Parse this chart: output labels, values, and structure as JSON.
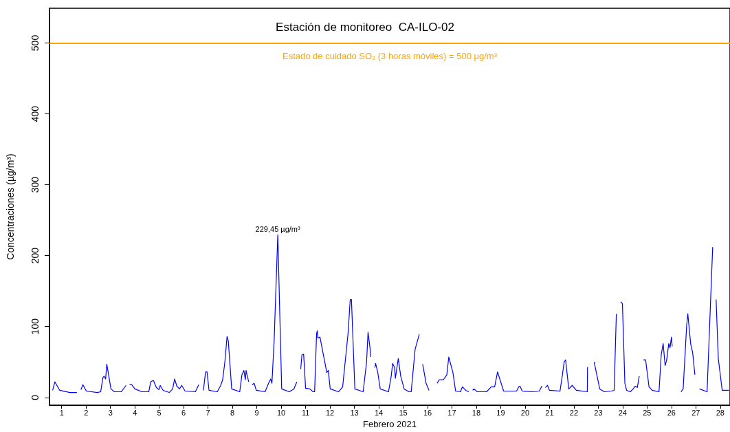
{
  "chart_data": {
    "type": "line",
    "title": "Estación de monitoreo  CA-ILO-02",
    "xlabel": "Febrero 2021",
    "ylabel": "Concentraciones (µg/m³)",
    "xlim": [
      0.5,
      28.4
    ],
    "xticks": [
      1,
      2,
      3,
      4,
      5,
      6,
      7,
      8,
      9,
      10,
      11,
      12,
      13,
      14,
      15,
      16,
      17,
      18,
      19,
      20,
      21,
      22,
      23,
      24,
      25,
      26,
      27,
      28
    ],
    "ylim": [
      -11,
      549
    ],
    "yticks": [
      0,
      100,
      200,
      300,
      400,
      500
    ],
    "grid": false,
    "marker": "none",
    "line_style": "solid",
    "ref_lines": [
      {
        "axis": "y",
        "value": 500,
        "label": "Estado de cuidado SO₂ (3 horas móviles) = 500 µg/m³",
        "color": "#ffa500"
      }
    ],
    "annotations": [
      {
        "text": "229,45 µg/m³",
        "x": 9.86,
        "y": 229.45
      }
    ],
    "series": [
      {
        "color": "#0000ff",
        "x": [
          0.63,
          0.72,
          0.92,
          1.34,
          1.62,
          1.7,
          1.79,
          1.87,
          2.01,
          2.46,
          2.6,
          2.69,
          2.74,
          2.8,
          2.85,
          3.02,
          3.16,
          3.44,
          3.64,
          3.71,
          3.78,
          3.87,
          4.0,
          4.29,
          4.57,
          4.65,
          4.76,
          4.88,
          4.99,
          5.04,
          5.16,
          5.41,
          5.55,
          5.63,
          5.72,
          5.83,
          5.92,
          6.06,
          6.48,
          6.62,
          6.7,
          6.81,
          6.9,
          6.96,
          7.04,
          7.38,
          7.52,
          7.6,
          7.69,
          7.78,
          7.83,
          7.97,
          8.3,
          8.39,
          8.47,
          8.53,
          8.56,
          8.61,
          8.67,
          8.74,
          8.81,
          8.89,
          8.98,
          9.34,
          9.48,
          9.57,
          9.62,
          9.71,
          9.86,
          10.02,
          10.33,
          10.52,
          10.64,
          10.72,
          10.8,
          10.85,
          10.92,
          11.0,
          11.17,
          11.31,
          11.37,
          11.45,
          11.48,
          11.5,
          11.59,
          11.87,
          11.93,
          12.01,
          12.35,
          12.52,
          12.74,
          12.83,
          12.88,
          13.02,
          13.36,
          13.5,
          13.56,
          13.64,
          13.67,
          13.75,
          13.84,
          13.87,
          13.96,
          14.06,
          14.4,
          14.51,
          14.57,
          14.65,
          14.68,
          14.8,
          14.9,
          15.04,
          15.24,
          15.33,
          15.49,
          15.66,
          15.73,
          15.8,
          15.94,
          16.06,
          16.2,
          16.39,
          16.48,
          16.65,
          16.79,
          16.87,
          17.04,
          17.15,
          17.35,
          17.43,
          17.57,
          17.69,
          17.77,
          17.85,
          17.9,
          18.04,
          18.42,
          18.61,
          18.75,
          18.87,
          18.98,
          19.12,
          19.65,
          19.74,
          19.79,
          19.88,
          20.3,
          20.58,
          20.69,
          20.76,
          20.83,
          20.92,
          21.0,
          21.43,
          21.51,
          21.6,
          21.66,
          21.79,
          21.93,
          22.1,
          22.55,
          22.56,
          22.7,
          22.83,
          23.06,
          23.25,
          23.53,
          23.65,
          23.74,
          23.83,
          23.92,
          23.99,
          24.09,
          24.16,
          24.31,
          24.43,
          24.51,
          24.6,
          24.68,
          24.77,
          24.85,
          24.94,
          25.08,
          25.21,
          25.49,
          25.58,
          25.66,
          25.74,
          25.8,
          25.89,
          25.94,
          26.0,
          26.03,
          26.2,
          26.39,
          26.48,
          26.62,
          26.67,
          26.79,
          26.87,
          26.96,
          27.05,
          27.15,
          27.46,
          27.69,
          27.76,
          27.83,
          27.92,
          28.08,
          28.36
        ],
        "values": [
          10,
          22,
          10,
          7,
          7,
          null,
          11,
          18,
          9,
          7,
          8,
          28,
          30,
          26,
          47,
          12,
          8,
          8,
          17,
          null,
          18,
          18,
          12,
          8,
          8,
          22,
          24,
          14,
          11,
          17,
          10,
          7,
          12,
          26,
          16,
          12,
          17,
          9,
          8,
          18,
          null,
          10,
          36,
          36,
          10,
          8,
          17,
          25,
          50,
          86,
          80,
          12,
          8,
          32,
          38,
          25,
          38,
          30,
          22,
          null,
          18,
          20,
          10,
          8,
          20,
          26,
          20,
          80,
          229.45,
          12,
          8,
          12,
          22,
          null,
          40,
          60,
          61,
          13,
          12,
          8,
          8,
          90,
          94,
          84,
          85,
          35,
          38,
          12,
          8,
          15,
          90,
          138,
          138,
          12,
          8,
          50,
          92,
          70,
          57,
          null,
          42,
          48,
          35,
          12,
          8,
          30,
          48,
          42,
          27,
          55,
          30,
          12,
          8,
          8,
          68,
          89,
          null,
          47,
          20,
          10,
          null,
          20,
          25,
          25,
          32,
          57,
          35,
          9,
          8,
          15,
          10,
          8,
          null,
          10,
          12,
          8,
          8,
          15,
          15,
          36,
          24,
          9,
          9,
          15,
          16,
          9,
          8,
          9,
          16,
          null,
          14,
          17,
          10,
          9,
          27,
          50,
          53,
          12,
          17,
          10,
          8,
          43,
          null,
          50,
          12,
          8,
          9,
          10,
          118,
          null,
          135,
          132,
          20,
          10,
          8,
          12,
          16,
          14,
          30,
          null,
          53,
          53,
          15,
          10,
          8,
          60,
          76,
          45,
          52,
          76,
          70,
          85,
          72,
          null,
          8,
          12,
          100,
          118,
          75,
          63,
          32,
          null,
          12,
          8,
          212,
          null,
          138,
          55,
          10,
          10
        ]
      }
    ]
  }
}
